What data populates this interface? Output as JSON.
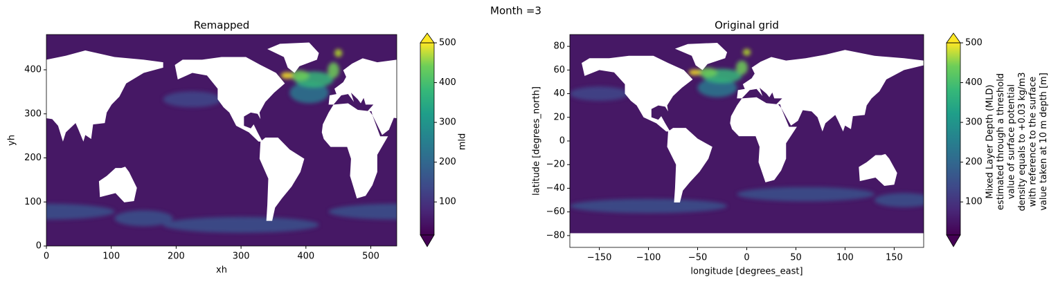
{
  "suptitle": "Month =3",
  "chart_data": [
    {
      "type": "heatmap",
      "title": "Remapped",
      "xlabel": "xh",
      "ylabel": "yh",
      "xlim": [
        0,
        540
      ],
      "ylim": [
        0,
        480
      ],
      "xticks": [
        0,
        100,
        200,
        300,
        400,
        500
      ],
      "yticks": [
        0,
        100,
        200,
        300,
        400
      ],
      "colorbar": {
        "label_lines": [
          "mld"
        ],
        "colormap": "viridis",
        "extend": "both",
        "lim": [
          17,
          500
        ],
        "ticks": [
          100,
          200,
          300,
          400,
          500
        ]
      }
    },
    {
      "type": "heatmap",
      "title": "Original grid",
      "xlabel": "longitude [degrees_east]",
      "ylabel": "latitude [degrees_north]",
      "xlim": [
        -180,
        180
      ],
      "ylim": [
        -90,
        90
      ],
      "xticks": [
        {
          "value": -150,
          "label": "−150"
        },
        {
          "value": -100,
          "label": "−100"
        },
        {
          "value": -50,
          "label": "−50"
        },
        0,
        50,
        100,
        150
      ],
      "yticks": [
        {
          "value": -80,
          "label": "−80"
        },
        {
          "value": -60,
          "label": "−60"
        },
        {
          "value": -40,
          "label": "−40"
        },
        {
          "value": -20,
          "label": "−20"
        },
        0,
        20,
        40,
        60,
        80
      ],
      "colorbar": {
        "label_lines": [
          "Mixed Layer Depth (MLD)",
          "estimated through a threshold",
          "value of surface potential",
          "density equals to +0.03 kg/m3",
          "with reference to the surface",
          "value taken at 10 m depth [m]"
        ],
        "colormap": "viridis",
        "extend": "both",
        "lim": [
          17,
          500
        ],
        "ticks": [
          100,
          200,
          300,
          400,
          500
        ]
      }
    }
  ]
}
